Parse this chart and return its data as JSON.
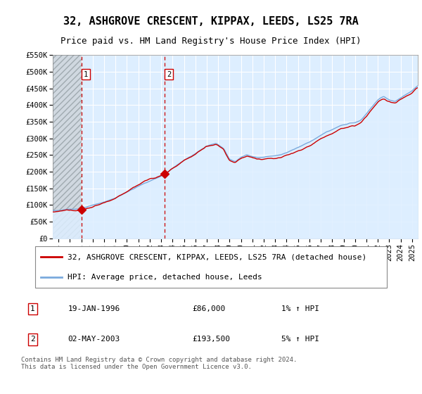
{
  "title": "32, ASHGROVE CRESCENT, KIPPAX, LEEDS, LS25 7RA",
  "subtitle": "Price paid vs. HM Land Registry's House Price Index (HPI)",
  "legend_line1": "32, ASHGROVE CRESCENT, KIPPAX, LEEDS, LS25 7RA (detached house)",
  "legend_line2": "HPI: Average price, detached house, Leeds",
  "footer": "Contains HM Land Registry data © Crown copyright and database right 2024.\nThis data is licensed under the Open Government Licence v3.0.",
  "sale1_label": "1",
  "sale1_date": "19-JAN-1996",
  "sale1_price": "£86,000",
  "sale1_hpi": "1% ↑ HPI",
  "sale2_label": "2",
  "sale2_date": "02-MAY-2003",
  "sale2_price": "£193,500",
  "sale2_hpi": "5% ↑ HPI",
  "sale1_x": 1996.05,
  "sale1_y": 86000,
  "sale2_x": 2003.33,
  "sale2_y": 193500,
  "ylim": [
    0,
    550000
  ],
  "xlim": [
    1993.5,
    2025.5
  ],
  "price_line_color": "#cc0000",
  "hpi_line_color": "#7aaadd",
  "hpi_fill_color": "#ddeeff",
  "dashed_line_color": "#cc0000",
  "background_plot": "#ddeeff",
  "background_hatch_face": "#d0d8e0",
  "grid_color": "#ffffff",
  "title_fontsize": 11,
  "subtitle_fontsize": 9,
  "tick_fontsize": 7.5,
  "legend_fontsize": 8
}
